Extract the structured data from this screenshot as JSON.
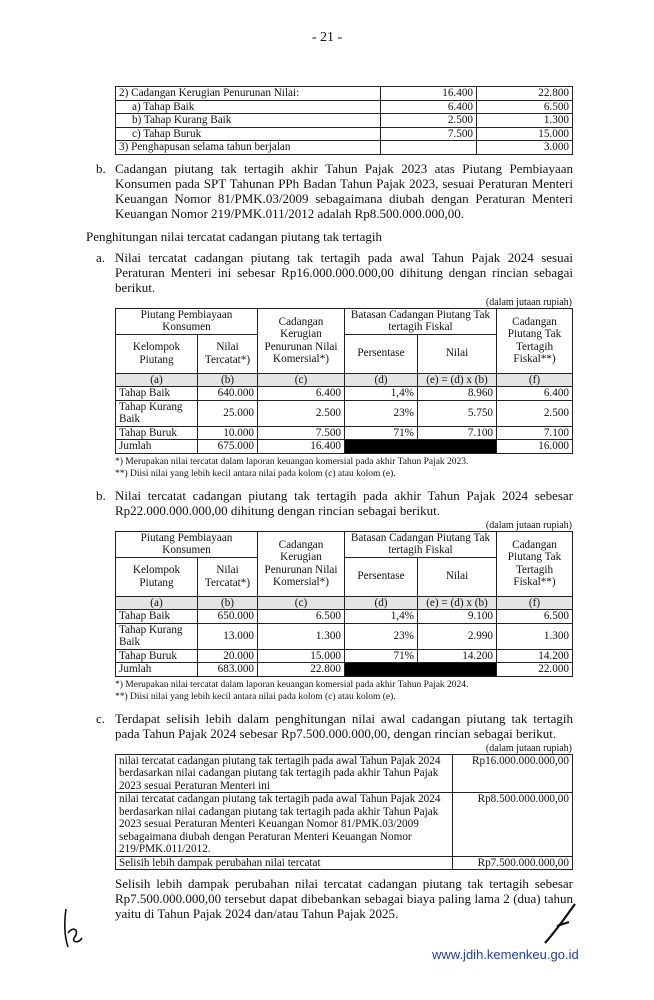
{
  "page_number": "- 21 -",
  "table1": {
    "rows": [
      {
        "label": "2)  Cadangan Kerugian Penurunan Nilai:",
        "v1": "16.400",
        "v2": "22.800"
      },
      {
        "label": "a)  Tahap Baik",
        "v1": "6.400",
        "v2": "6.500"
      },
      {
        "label": "b)  Tahap Kurang Baik",
        "v1": "2.500",
        "v2": "1.300"
      },
      {
        "label": "c)  Tahap Buruk",
        "v1": "7.500",
        "v2": "15.000"
      },
      {
        "label": "3)  Penghapusan selama tahun berjalan",
        "v1": "",
        "v2": "3.000"
      }
    ]
  },
  "para_b1": {
    "marker": "b.",
    "text": "Cadangan piutang tak tertagih akhir Tahun Pajak 2023 atas Piutang Pembiayaan Konsumen pada SPT Tahunan PPh Badan Tahun Pajak 2023, sesuai Peraturan Menteri Keuangan Nomor 81/PMK.03/2009 sebagaimana diubah dengan Peraturan Menteri Keuangan Nomor 219/PMK.011/2012 adalah Rp8.500.000.000,00."
  },
  "heading": "Penghitungan nilai tercatat cadangan piutang tak tertagih",
  "para_a": {
    "marker": "a.",
    "text": "Nilai tercatat cadangan piutang tak tertagih pada awal Tahun Pajak 2024 sesuai Peraturan Menteri ini sebesar Rp16.000.000.000,00 dihitung dengan rincian sebagai berikut."
  },
  "unit": "(dalam jutaan rupiah)",
  "headers": {
    "piutang": "Piutang Pembiayaan Konsumen",
    "ckpn": "Cadangan Kerugian Penurunan Nilai Komersial*)",
    "batasan": "Batasan Cadangan Piutang Tak tertagih Fiskal",
    "cpt": "Cadangan Piutang Tak Tertagih Fiskal**)",
    "kelompok": "Kelompok Piutang",
    "nilai_tercatat": "Nilai Tercatat*)",
    "persentase": "Persentase",
    "nilai": "Nilai",
    "a": "(a)",
    "b": "(b)",
    "c": "(c)",
    "d": "(d)",
    "e": "(e) = (d) x (b)",
    "f": "(f)"
  },
  "table2": {
    "rows": [
      {
        "k": "Tahap Baik",
        "b": "640.000",
        "c": "6.400",
        "d": "1,4%",
        "e": "8.960",
        "f": "6.400"
      },
      {
        "k": "Tahap Kurang Baik",
        "b": "25.000",
        "c": "2.500",
        "d": "23%",
        "e": "5.750",
        "f": "2.500"
      },
      {
        "k": "Tahap Buruk",
        "b": "10.000",
        "c": "7.500",
        "d": "71%",
        "e": "7.100",
        "f": "7.100"
      }
    ],
    "total": {
      "k": "Jumlah",
      "b": "675.000",
      "c": "16.400",
      "f": "16.000"
    },
    "note1": "*)   Merupakan nilai tercatat dalam laporan keuangan komersial pada akhir Tahun Pajak 2023.",
    "note2": "**)  Diisi nilai yang lebih kecil antara nilai pada kolom (c) atau kolom (e)."
  },
  "para_b2": {
    "marker": "b.",
    "text": "Nilai tercatat cadangan piutang tak tertagih pada akhir Tahun Pajak 2024 sebesar Rp22.000.000.000,00 dihitung dengan rincian sebagai berikut."
  },
  "table3": {
    "rows": [
      {
        "k": "Tahap Baik",
        "b": "650.000",
        "c": "6.500",
        "d": "1,4%",
        "e": "9.100",
        "f": "6.500"
      },
      {
        "k": "Tahap Kurang Baik",
        "b": "13.000",
        "c": "1.300",
        "d": "23%",
        "e": "2.990",
        "f": "1.300"
      },
      {
        "k": "Tahap Buruk",
        "b": "20.000",
        "c": "15.000",
        "d": "71%",
        "e": "14.200",
        "f": "14.200"
      }
    ],
    "total": {
      "k": "Jumlah",
      "b": "683.000",
      "c": "22.800",
      "f": "22.000"
    },
    "note1": "*)   Merupakan nilai tercatat dalam laporan keuangan komersial pada akhir Tahun Pajak 2024.",
    "note2": "**)  Diisi nilai yang lebih kecil antara nilai pada kolom (c) atau kolom (e)."
  },
  "para_c": {
    "marker": "c.",
    "text": "Terdapat selisih lebih dalam penghitungan nilai awal cadangan piutang tak tertagih pada Tahun Pajak 2024 sebesar Rp7.500.000.000,00, dengan rincian sebagai berikut."
  },
  "table4": {
    "rows": [
      {
        "label": "nilai tercatat cadangan piutang tak tertagih pada awal Tahun Pajak 2024 berdasarkan nilai cadangan piutang tak tertagih pada akhir Tahun Pajak 2023 sesuai Peraturan Menteri ini",
        "value": "Rp16.000.000.000,00"
      },
      {
        "label": "nilai tercatat cadangan piutang tak tertagih pada awal Tahun Pajak 2024 berdasarkan nilai cadangan piutang tak tertagih pada akhir Tahun Pajak 2023 sesuai Peraturan Menteri Keuangan Nomor 81/PMK.03/2009 sebagaimana diubah dengan Peraturan Menteri Keuangan Nomor 219/PMK.011/2012.",
        "value": "Rp8.500.000.000,00"
      },
      {
        "label": "Selisih lebih dampak perubahan nilai tercatat",
        "value": "Rp7.500.000.000,00"
      }
    ]
  },
  "para_final": "Selisih lebih dampak perubahan nilai tercatat cadangan piutang tak tertagih sebesar Rp7.500.000.000,00 tersebut dapat dibebankan sebagai biaya paling lama 2 (dua) tahun yaitu di Tahun Pajak 2024 dan/atau Tahun Pajak 2025.",
  "footer_url": "www.jdih.kemenkeu.go.id"
}
